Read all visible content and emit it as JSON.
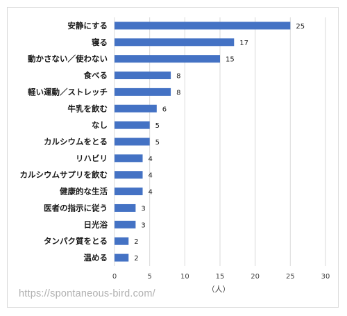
{
  "chart_data": {
    "type": "bar",
    "orientation": "horizontal",
    "categories": [
      "安静にする",
      "寝る",
      "動かさない／使わない",
      "食べる",
      "軽い運動／ストレッチ",
      "牛乳を飲む",
      "なし",
      "カルシウムをとる",
      "リハビリ",
      "カルシウムサプリを飲む",
      "健康的な生活",
      "医者の指示に従う",
      "日光浴",
      "タンパク質をとる",
      "温める"
    ],
    "values": [
      25,
      17,
      15,
      8,
      8,
      6,
      5,
      5,
      4,
      4,
      4,
      3,
      3,
      2,
      2
    ],
    "xlabel": "（人）",
    "xlim": [
      0,
      30
    ],
    "xticks": [
      0,
      5,
      10,
      15,
      20,
      25,
      30
    ],
    "grid": true,
    "bar_color": "#4472c4",
    "data_labels": true
  },
  "watermark": "https://spontaneous-bird.com/"
}
